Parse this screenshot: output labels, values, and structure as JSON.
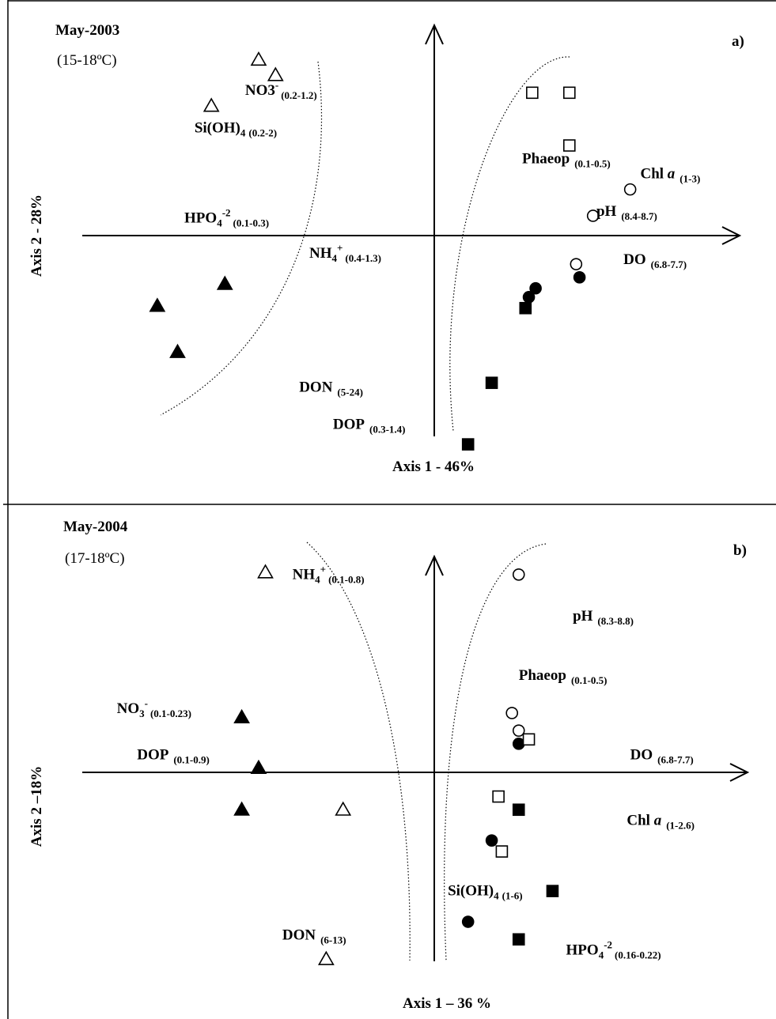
{
  "chart_data": [
    {
      "type": "scatter",
      "title": "May-2003",
      "subtitle": "(15-18ºC)",
      "panel_tag": "a)",
      "xlabel": "Axis 1 - 46%",
      "ylabel": "Axis 2 - 28%",
      "grid": false,
      "variables": [
        {
          "name": "NO3",
          "sup": "-",
          "sub": "(0.2-1.2)",
          "x": -0.56,
          "y": 0.64
        },
        {
          "name": "Si(OH)",
          "sub4": "4",
          "sub": "(0.2-2)",
          "x": -0.71,
          "y": 0.47
        },
        {
          "name": "HPO",
          "sub4": "4",
          "sup": "-2",
          "sub": "(0.1-0.3)",
          "x": -0.74,
          "y": 0.06
        },
        {
          "name": "NH",
          "sub4": "4",
          "sup": "+",
          "sub": "(0.4-1.3)",
          "x": -0.37,
          "y": -0.1
        },
        {
          "name": "DON",
          "sub": "(5-24)",
          "x": -0.4,
          "y": -0.71
        },
        {
          "name": "DOP",
          "sub": "(0.3-1.4)",
          "x": -0.3,
          "y": -0.88
        },
        {
          "name": "Phaeop",
          "sub": "(0.1-0.5)",
          "x": 0.26,
          "y": 0.33
        },
        {
          "name": "Chl ",
          "italic": "a",
          "sub": "(1-3)",
          "x": 0.61,
          "y": 0.26
        },
        {
          "name": "pH",
          "sub": "(8.4-8.7)",
          "x": 0.48,
          "y": 0.09
        },
        {
          "name": "DO",
          "sub": "(6.8-7.7)",
          "x": 0.56,
          "y": -0.13
        }
      ],
      "series": [
        {
          "marker": "triangle-open",
          "points": [
            [
              -0.52,
              0.8
            ],
            [
              -0.47,
              0.73
            ],
            [
              -0.66,
              0.59
            ]
          ]
        },
        {
          "marker": "triangle-filled",
          "points": [
            [
              -0.62,
              -0.22
            ],
            [
              -0.82,
              -0.32
            ],
            [
              -0.76,
              -0.53
            ]
          ]
        },
        {
          "marker": "square-open",
          "points": [
            [
              0.29,
              0.65
            ],
            [
              0.4,
              0.65
            ],
            [
              0.4,
              0.41
            ]
          ]
        },
        {
          "marker": "square-filled",
          "points": [
            [
              0.27,
              -0.33
            ],
            [
              0.17,
              -0.67
            ],
            [
              0.1,
              -0.95
            ]
          ]
        },
        {
          "marker": "circle-open",
          "points": [
            [
              0.58,
              0.21
            ],
            [
              0.47,
              0.09
            ],
            [
              0.42,
              -0.13
            ]
          ]
        },
        {
          "marker": "circle-filled",
          "points": [
            [
              0.3,
              -0.24
            ],
            [
              0.28,
              -0.28
            ],
            [
              0.43,
              -0.19
            ]
          ]
        }
      ],
      "xlim": [
        -1.2,
        0.9
      ],
      "ylim": [
        -1.0,
        1.0
      ]
    },
    {
      "type": "scatter",
      "title": "May-2004",
      "subtitle": "(17-18ºC)",
      "panel_tag": "b)",
      "xlabel": "Axis 1 – 36 %",
      "ylabel": "Axis 2 –18%",
      "grid": false,
      "variables": [
        {
          "name": "NH",
          "sub4": "4",
          "sup": "+",
          "sub": "(0.1-0.8)",
          "x": -0.42,
          "y": 0.88
        },
        {
          "name": "NO",
          "sub4": "3",
          "sup": "-",
          "sub": "(0.1-0.23)",
          "x": -0.94,
          "y": 0.27
        },
        {
          "name": "DOP",
          "sub": "(0.1-0.9)",
          "x": -0.88,
          "y": 0.06
        },
        {
          "name": "DON",
          "sub": "(6-13)",
          "x": -0.45,
          "y": -0.76
        },
        {
          "name": "pH",
          "sub": "(8.3-8.8)",
          "x": 0.41,
          "y": 0.69
        },
        {
          "name": "Phaeop",
          "sub": "(0.1-0.5)",
          "x": 0.25,
          "y": 0.42
        },
        {
          "name": "DO",
          "sub": "(6.8-7.7)",
          "x": 0.58,
          "y": 0.06
        },
        {
          "name": "Chl ",
          "italic": "a",
          "sub": "(1-2.6)",
          "x": 0.57,
          "y": -0.24
        },
        {
          "name": "Si(OH)",
          "sub4": "4",
          "sub": "(1-6)",
          "x": 0.04,
          "y": -0.56
        },
        {
          "name": "HPO",
          "sub4": "4",
          "sup": "-2",
          "sub": "(0.16-0.22)",
          "x": 0.39,
          "y": -0.83
        }
      ],
      "series": [
        {
          "marker": "triangle-open",
          "points": [
            [
              -0.5,
              0.91
            ],
            [
              -0.27,
              -0.17
            ],
            [
              -0.32,
              -0.85
            ]
          ]
        },
        {
          "marker": "triangle-filled",
          "points": [
            [
              -0.57,
              0.25
            ],
            [
              -0.52,
              0.02
            ],
            [
              -0.57,
              -0.17
            ]
          ]
        },
        {
          "marker": "circle-open",
          "points": [
            [
              0.25,
              0.9
            ],
            [
              0.23,
              0.27
            ],
            [
              0.25,
              0.19
            ]
          ]
        },
        {
          "marker": "circle-filled",
          "points": [
            [
              0.25,
              0.13
            ],
            [
              0.17,
              -0.31
            ],
            [
              0.1,
              -0.68
            ]
          ]
        },
        {
          "marker": "square-open",
          "points": [
            [
              0.28,
              0.15
            ],
            [
              0.19,
              -0.11
            ],
            [
              0.2,
              -0.36
            ]
          ]
        },
        {
          "marker": "square-filled",
          "points": [
            [
              0.25,
              -0.17
            ],
            [
              0.35,
              -0.54
            ],
            [
              0.25,
              -0.76
            ]
          ]
        }
      ],
      "xlim": [
        -1.2,
        0.9
      ],
      "ylim": [
        -1.0,
        1.0
      ]
    }
  ]
}
